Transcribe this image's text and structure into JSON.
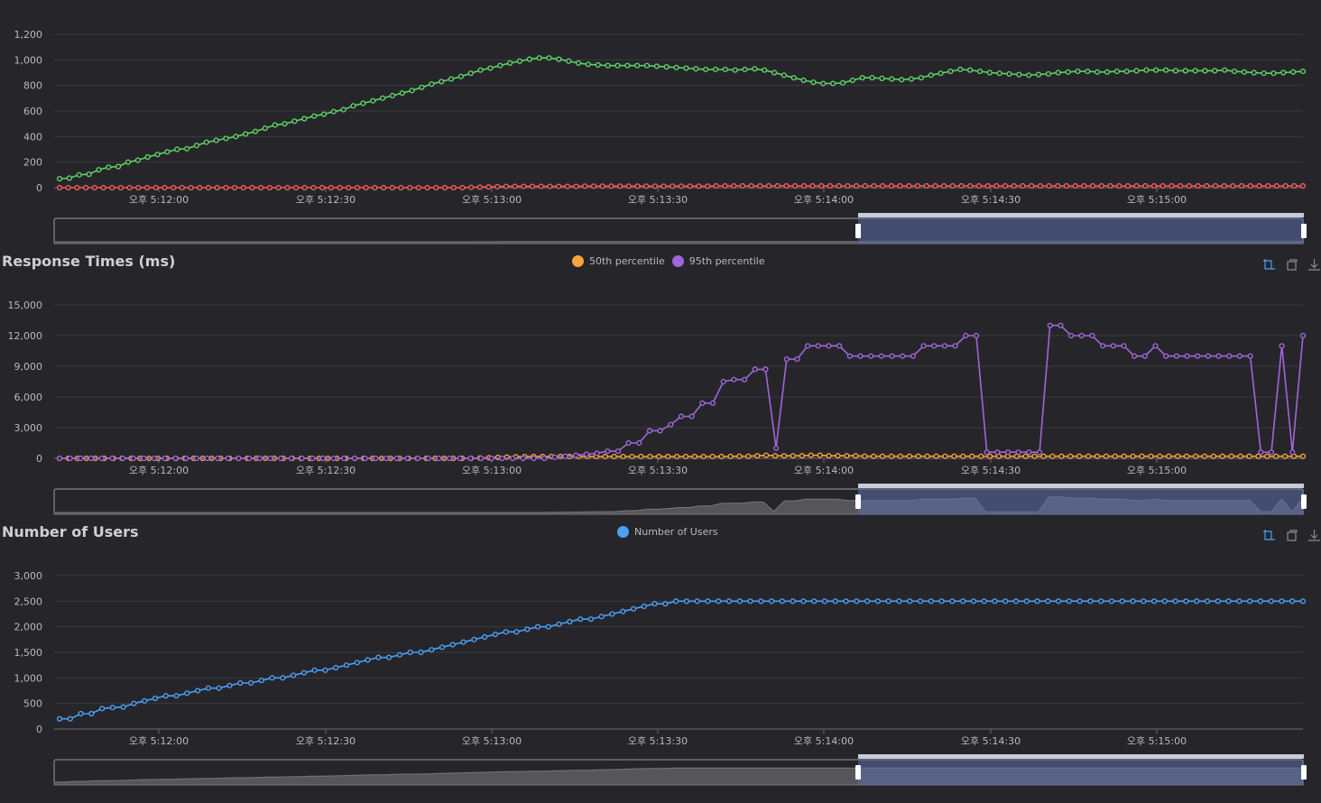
{
  "x_labels": [
    "오후 5:12:00",
    "오후 5:12:30",
    "오후 5:13:00",
    "오후 5:13:30",
    "오후 5:14:00",
    "오후 5:14:30",
    "오후 5:15:00"
  ],
  "toolbox": {
    "zoom_icon": "data-zoom-icon",
    "reset_icon": "zoom-reset-icon",
    "save_icon": "download-icon"
  },
  "panels": [
    {
      "id": "rps",
      "title": "",
      "legend": []
    },
    {
      "id": "response",
      "title": "Response Times (ms)",
      "legend": [
        {
          "name": "50th percentile",
          "color": "#f5a33b"
        },
        {
          "name": "95th percentile",
          "color": "#a066d9"
        }
      ]
    },
    {
      "id": "users",
      "title": "Number of Users",
      "legend": [
        {
          "name": "Number of Users",
          "color": "#4c9ff5"
        }
      ]
    }
  ],
  "chart_data": [
    {
      "type": "line",
      "title": "",
      "y_ticks": [
        "0",
        "200",
        "400",
        "600",
        "800",
        "1,000",
        "1,200"
      ],
      "ylim": [
        0,
        1200
      ],
      "x_ticks": [
        "오후 5:12:00",
        "오후 5:12:30",
        "오후 5:13:00",
        "오후 5:13:30",
        "오후 5:14:00",
        "오후 5:14:30",
        "오후 5:15:00"
      ],
      "grid": true,
      "series": [
        {
          "color": "#5fd068",
          "values": [
            70,
            75,
            100,
            105,
            140,
            160,
            165,
            200,
            215,
            240,
            260,
            280,
            300,
            305,
            330,
            355,
            370,
            385,
            400,
            420,
            440,
            465,
            490,
            500,
            520,
            540,
            560,
            575,
            595,
            610,
            640,
            660,
            680,
            700,
            720,
            740,
            760,
            785,
            810,
            830,
            850,
            870,
            895,
            920,
            935,
            955,
            975,
            990,
            1005,
            1015,
            1015,
            1005,
            990,
            975,
            965,
            960,
            955,
            955,
            955,
            955,
            955,
            950,
            945,
            940,
            935,
            930,
            925,
            925,
            925,
            920,
            925,
            930,
            920,
            900,
            880,
            860,
            840,
            825,
            815,
            815,
            820,
            840,
            860,
            860,
            855,
            850,
            845,
            850,
            860,
            880,
            895,
            910,
            925,
            920,
            910,
            900,
            895,
            890,
            885,
            880,
            885,
            890,
            900,
            905,
            910,
            910,
            905,
            905,
            910,
            910,
            915,
            920,
            920,
            920,
            915,
            915,
            915,
            915,
            915,
            920,
            910,
            905,
            900,
            895,
            895,
            900,
            905,
            910
          ]
        },
        {
          "color": "#f25c5c",
          "values": [
            0,
            0,
            0,
            0,
            0,
            0,
            0,
            0,
            0,
            0,
            0,
            0,
            0,
            0,
            0,
            0,
            0,
            0,
            0,
            0,
            0,
            0,
            0,
            0,
            0,
            0,
            0,
            0,
            0,
            0,
            0,
            0,
            0,
            0,
            0,
            0,
            0,
            0,
            0,
            0,
            0,
            0,
            0,
            0,
            0,
            0,
            0,
            2,
            4,
            6,
            8,
            10,
            10,
            10,
            10,
            10,
            10,
            10,
            10,
            10,
            12,
            12,
            12,
            12,
            12,
            12,
            12,
            12,
            12,
            12,
            12,
            12,
            12,
            12,
            12,
            14,
            14,
            14,
            14,
            14,
            14,
            14,
            14,
            14,
            14,
            14,
            14,
            14,
            14,
            14,
            14,
            14,
            14,
            14,
            14,
            14,
            14,
            14,
            14,
            14,
            14,
            14,
            14,
            14,
            14,
            14,
            14,
            14,
            14,
            14,
            14,
            14,
            14,
            14,
            14,
            14,
            14,
            14,
            14,
            14,
            14,
            14,
            14,
            14,
            14,
            14,
            14,
            14,
            14,
            14,
            14,
            14,
            14,
            14,
            14,
            14,
            14,
            14,
            14,
            14,
            14,
            14,
            14
          ]
        }
      ]
    },
    {
      "type": "line",
      "title": "Response Times (ms)",
      "y_ticks": [
        "0",
        "3,000",
        "6,000",
        "9,000",
        "12,000",
        "15,000"
      ],
      "ylim": [
        0,
        15000
      ],
      "x_ticks": [
        "오후 5:12:00",
        "오후 5:12:30",
        "오후 5:13:00",
        "오후 5:13:30",
        "오후 5:14:00",
        "오후 5:14:30",
        "오후 5:15:00"
      ],
      "grid": true,
      "series": [
        {
          "name": "50th percentile",
          "color": "#f5a33b",
          "values": [
            0,
            0,
            0,
            0,
            0,
            0,
            0,
            0,
            0,
            0,
            0,
            0,
            0,
            0,
            0,
            0,
            0,
            0,
            0,
            0,
            0,
            0,
            0,
            0,
            0,
            0,
            0,
            0,
            0,
            0,
            0,
            0,
            0,
            0,
            0,
            0,
            0,
            0,
            0,
            0,
            0,
            0,
            0,
            0,
            0,
            0,
            0,
            30,
            60,
            90,
            120,
            150,
            170,
            180,
            180,
            180,
            180,
            180,
            180,
            180,
            180,
            180,
            180,
            180,
            180,
            180,
            180,
            180,
            180,
            180,
            180,
            180,
            180,
            180,
            180,
            190,
            200,
            200,
            250,
            300,
            250,
            250,
            250,
            250,
            300,
            300,
            250,
            250,
            250,
            250,
            200,
            200,
            200,
            200,
            200,
            200,
            200,
            200,
            200,
            200,
            200,
            200,
            200,
            200,
            200,
            200,
            200,
            200,
            200,
            200,
            200,
            200,
            200,
            200,
            200,
            200,
            200,
            200,
            200,
            200,
            200,
            200,
            200,
            200,
            200,
            200,
            200,
            200,
            200,
            200,
            200,
            200,
            200,
            200,
            200,
            200,
            200,
            200,
            200,
            200
          ]
        },
        {
          "name": "95th percentile",
          "color": "#a066d9",
          "values": [
            0,
            0,
            0,
            0,
            0,
            0,
            0,
            0,
            0,
            0,
            0,
            0,
            0,
            0,
            0,
            0,
            0,
            0,
            0,
            0,
            0,
            0,
            0,
            0,
            0,
            0,
            0,
            0,
            0,
            0,
            0,
            0,
            0,
            0,
            0,
            0,
            0,
            0,
            0,
            0,
            0,
            0,
            0,
            0,
            0,
            0,
            0,
            100,
            200,
            300,
            400,
            500,
            700,
            700,
            1500,
            1500,
            2700,
            2700,
            3300,
            4100,
            4100,
            5400,
            5400,
            7500,
            7700,
            7700,
            8700,
            8700,
            1000,
            9700,
            9700,
            11000,
            11000,
            11000,
            11000,
            10000,
            10000,
            10000,
            10000,
            10000,
            10000,
            10000,
            11000,
            11000,
            11000,
            11000,
            12000,
            12000,
            600,
            600,
            600,
            600,
            600,
            600,
            13000,
            13000,
            12000,
            12000,
            12000,
            11000,
            11000,
            11000,
            10000,
            10000,
            11000,
            10000,
            10000,
            10000,
            10000,
            10000,
            10000,
            10000,
            10000,
            10000,
            600,
            600,
            11000,
            600,
            12000
          ]
        }
      ]
    },
    {
      "type": "line",
      "title": "Number of Users",
      "y_ticks": [
        "0",
        "500",
        "1,000",
        "1,500",
        "2,000",
        "2,500",
        "3,000"
      ],
      "ylim": [
        0,
        3000
      ],
      "x_ticks": [
        "오후 5:12:00",
        "오후 5:12:30",
        "오후 5:13:00",
        "오후 5:13:30",
        "오후 5:14:00",
        "오후 5:14:30",
        "오후 5:15:00"
      ],
      "grid": true,
      "series": [
        {
          "name": "Number of Users",
          "color": "#4c9ff5",
          "values": [
            200,
            200,
            300,
            300,
            400,
            420,
            430,
            500,
            550,
            600,
            650,
            650,
            700,
            750,
            800,
            800,
            850,
            900,
            900,
            950,
            1000,
            1000,
            1050,
            1100,
            1150,
            1150,
            1200,
            1250,
            1300,
            1350,
            1400,
            1400,
            1450,
            1500,
            1500,
            1550,
            1600,
            1650,
            1700,
            1750,
            1800,
            1850,
            1900,
            1900,
            1950,
            2000,
            2000,
            2050,
            2100,
            2150,
            2150,
            2200,
            2250,
            2300,
            2350,
            2400,
            2450,
            2450,
            2500,
            2500,
            2500,
            2500,
            2500,
            2500,
            2500,
            2500,
            2500,
            2500,
            2500,
            2500,
            2500,
            2500,
            2500,
            2500,
            2500,
            2500,
            2500,
            2500,
            2500,
            2500,
            2500,
            2500,
            2500,
            2500,
            2500,
            2500,
            2500,
            2500,
            2500,
            2500,
            2500,
            2500,
            2500,
            2500,
            2500,
            2500,
            2500,
            2500,
            2500,
            2500,
            2500,
            2500,
            2500,
            2500,
            2500,
            2500,
            2500,
            2500,
            2500,
            2500,
            2500,
            2500,
            2500,
            2500,
            2500,
            2500,
            2500,
            2500
          ]
        }
      ]
    }
  ]
}
